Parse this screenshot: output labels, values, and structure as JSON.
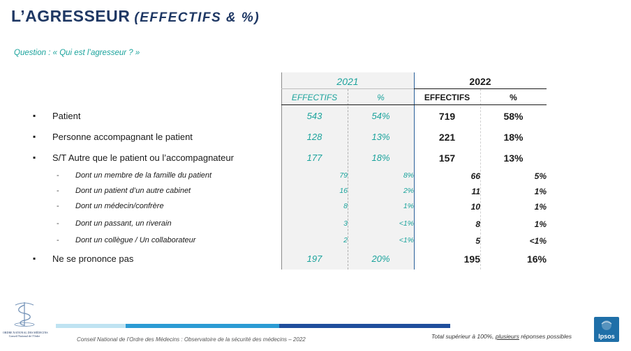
{
  "title": {
    "main": "L’AGRESSEUR",
    "sub": "(EFFECTIFS & %)"
  },
  "question": "Question : « Qui est l’agresseur ? »",
  "years": [
    "2021",
    "2022"
  ],
  "headers": {
    "effectifs": "EFFECTIFS",
    "pct": "%"
  },
  "rows": [
    {
      "label": "Patient",
      "e21": "543",
      "p21": "54%",
      "e22": "719",
      "p22": "58%"
    },
    {
      "label": "Personne accompagnant le patient",
      "e21": "128",
      "p21": "13%",
      "e22": "221",
      "p22": "18%"
    },
    {
      "label": "S/T Autre que le patient ou l’accompagnateur",
      "e21": "177",
      "p21": "18%",
      "e22": "157",
      "p22": "13%"
    },
    {
      "label": "Dont un membre de la famille du patient",
      "e21": "79",
      "p21": "8%",
      "e22": "66",
      "p22": "5%"
    },
    {
      "label": "Dont un patient d’un autre cabinet",
      "e21": "16",
      "p21": "2%",
      "e22": "11",
      "p22": "1%"
    },
    {
      "label": "Dont un médecin/confrère",
      "e21": "8",
      "p21": "1%",
      "e22": "10",
      "p22": "1%"
    },
    {
      "label": "Dont un passant, un riverain",
      "e21": "3",
      "p21": "<1%",
      "e22": "8",
      "p22": "1%"
    },
    {
      "label": "Dont un collègue / Un collaborateur",
      "e21": "2",
      "p21": "<1%",
      "e22": "5",
      "p22": "<1%"
    },
    {
      "label": "Ne se prononce pas",
      "e21": "197",
      "p21": "20%",
      "e22": "195",
      "p22": "16%"
    }
  ],
  "bullet": "▪",
  "dash": "-",
  "footer": "Conseil National de l’Ordre des Médecins : Observatoire de la sécurité des médecins – 2022",
  "note": {
    "before": "Total supérieur à 100%, ",
    "underlined": "plusieurs",
    "after": " réponses possibles"
  },
  "logo_cnom_text": [
    "ORDRE NATIONAL DES MÉDECINS",
    "Conseil National de l’Ordre"
  ],
  "logo_ipsos_text": "Ipsos",
  "colors": {
    "title": "#1f3864",
    "teal": "#1ba39c",
    "ipsos_blue": "#1f6fa8"
  }
}
